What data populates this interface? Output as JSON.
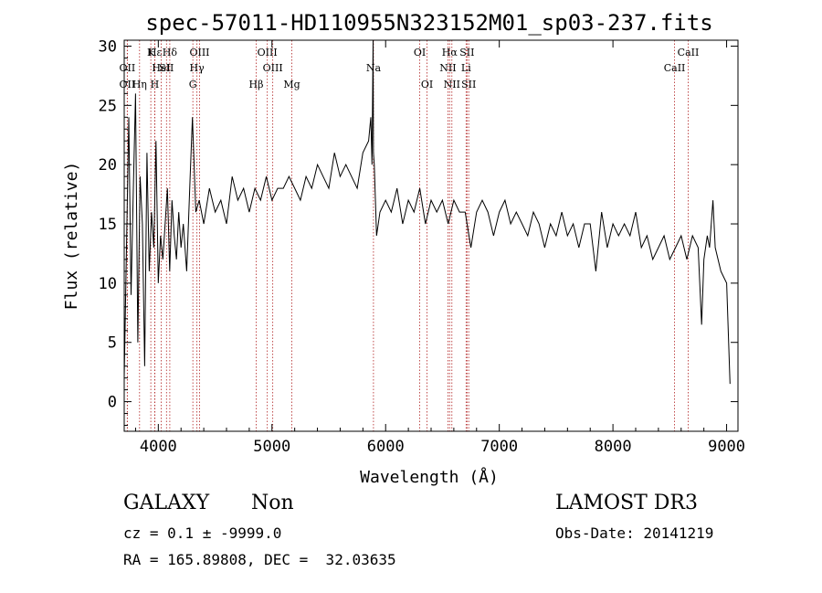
{
  "chart_data": {
    "type": "line",
    "title": "spec-57011-HD110955N323152M01_sp03-237.fits",
    "xlabel": "Wavelength (Å)",
    "ylabel": "Flux (relative)",
    "xlim": [
      3700,
      9100
    ],
    "ylim": [
      -2.5,
      30.5
    ],
    "x_ticks": [
      4000,
      5000,
      6000,
      7000,
      8000,
      9000
    ],
    "y_ticks": [
      0,
      5,
      10,
      15,
      20,
      25,
      30
    ],
    "series": [
      {
        "name": "spectrum",
        "x": [
          3700,
          3720,
          3740,
          3760,
          3780,
          3800,
          3820,
          3840,
          3860,
          3880,
          3900,
          3920,
          3940,
          3960,
          3980,
          4000,
          4020,
          4040,
          4060,
          4080,
          4100,
          4120,
          4140,
          4160,
          4180,
          4200,
          4220,
          4250,
          4280,
          4300,
          4330,
          4360,
          4400,
          4450,
          4500,
          4550,
          4600,
          4650,
          4700,
          4750,
          4800,
          4850,
          4900,
          4950,
          5000,
          5050,
          5100,
          5150,
          5200,
          5250,
          5300,
          5350,
          5400,
          5450,
          5500,
          5550,
          5600,
          5650,
          5700,
          5750,
          5800,
          5850,
          5870,
          5880,
          5890,
          5893,
          5900,
          5920,
          5950,
          6000,
          6050,
          6100,
          6150,
          6200,
          6250,
          6300,
          6350,
          6400,
          6450,
          6500,
          6550,
          6600,
          6650,
          6700,
          6750,
          6800,
          6850,
          6900,
          6950,
          7000,
          7050,
          7100,
          7150,
          7200,
          7250,
          7300,
          7350,
          7400,
          7450,
          7500,
          7550,
          7600,
          7650,
          7700,
          7750,
          7800,
          7850,
          7900,
          7950,
          8000,
          8050,
          8100,
          8150,
          8200,
          8250,
          8300,
          8350,
          8400,
          8450,
          8500,
          8550,
          8600,
          8650,
          8700,
          8750,
          8780,
          8800,
          8830,
          8850,
          8880,
          8900,
          8950,
          9000,
          9030
        ],
        "y": [
          2,
          13,
          24,
          9,
          18,
          26,
          5,
          19,
          15,
          3,
          21,
          11,
          16,
          13,
          22,
          10,
          14,
          12,
          15,
          18,
          11,
          17,
          14,
          12,
          16,
          13,
          15,
          11,
          19,
          24,
          16,
          17,
          15,
          18,
          16,
          17,
          15,
          19,
          17,
          18,
          16,
          18,
          17,
          19,
          17,
          18,
          18,
          19,
          18,
          17,
          19,
          18,
          20,
          19,
          18,
          21,
          19,
          20,
          19,
          18,
          21,
          22,
          24,
          20,
          30.5,
          21,
          20,
          14,
          16,
          17,
          16,
          18,
          15,
          17,
          16,
          18,
          15,
          17,
          16,
          17,
          15,
          17,
          16,
          16,
          13,
          16,
          17,
          16,
          14,
          16,
          17,
          15,
          16,
          15,
          14,
          16,
          15,
          13,
          15,
          14,
          16,
          14,
          15,
          13,
          15,
          15,
          11,
          16,
          13,
          15,
          14,
          15,
          14,
          16,
          13,
          14,
          12,
          13,
          14,
          12,
          13,
          14,
          12,
          14,
          13,
          6.5,
          12,
          14,
          13,
          17,
          13,
          11,
          10,
          1.5
        ]
      }
    ],
    "lines": [
      {
        "wl": 3727,
        "label": "OII",
        "row": 1
      },
      {
        "wl": 3727,
        "label": "OII",
        "row": 2
      },
      {
        "wl": 3970,
        "label": "Hε",
        "row": 0
      },
      {
        "wl": 4101,
        "label": "Hδ",
        "row": 0
      },
      {
        "wl": 4026,
        "label": "HeI",
        "row": 1
      },
      {
        "wl": 3835,
        "label": "Hη",
        "row": 2
      },
      {
        "wl": 3934,
        "label": "K",
        "row": 0
      },
      {
        "wl": 3969,
        "label": "H",
        "row": 2
      },
      {
        "wl": 4072,
        "label": "SII",
        "row": 1
      },
      {
        "wl": 4363,
        "label": "OIII",
        "row": 0
      },
      {
        "wl": 4340,
        "label": "Hγ",
        "row": 1
      },
      {
        "wl": 4304,
        "label": "G",
        "row": 2
      },
      {
        "wl": 4959,
        "label": "OIII",
        "row": 0
      },
      {
        "wl": 5007,
        "label": "OIII",
        "row": 1
      },
      {
        "wl": 4861,
        "label": "Hβ",
        "row": 2
      },
      {
        "wl": 5175,
        "label": "Mg",
        "row": 2
      },
      {
        "wl": 5893,
        "label": "Na",
        "row": 1
      },
      {
        "wl": 6300,
        "label": "OI",
        "row": 0
      },
      {
        "wl": 6364,
        "label": "OI",
        "row": 2
      },
      {
        "wl": 6563,
        "label": "Hα",
        "row": 0
      },
      {
        "wl": 6548,
        "label": "NII",
        "row": 1
      },
      {
        "wl": 6583,
        "label": "NII",
        "row": 2
      },
      {
        "wl": 6716,
        "label": "SII",
        "row": 0
      },
      {
        "wl": 6708,
        "label": "Li",
        "row": 1
      },
      {
        "wl": 6731,
        "label": "SII",
        "row": 2
      },
      {
        "wl": 8662,
        "label": "CaII",
        "row": 0
      },
      {
        "wl": 8542,
        "label": "CaII",
        "row": 1
      }
    ]
  },
  "footer": {
    "object_class": "GALAXY",
    "subclass": "Non",
    "survey": "LAMOST DR3",
    "redshift": "cz = 0.1 ± -9999.0",
    "obs_date": "Obs-Date: 20141219",
    "coords": "RA = 165.89808, DEC =  32.03635"
  }
}
